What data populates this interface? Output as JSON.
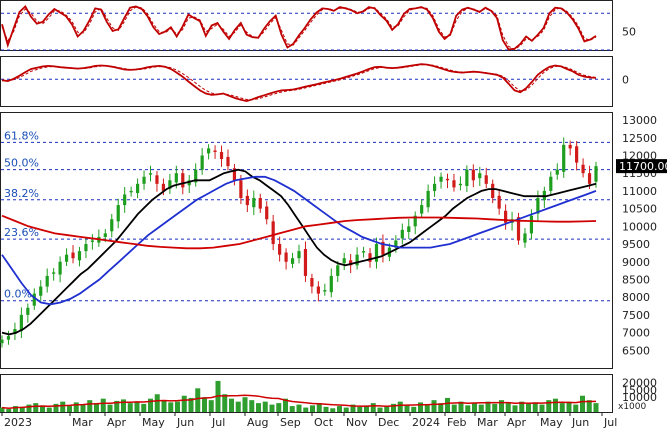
{
  "chart_data": [
    {
      "type": "line",
      "panel": "stochastic-oscillator",
      "ylim": [
        20,
        100
      ],
      "y_ticks": [
        "50"
      ],
      "levels": [
        80,
        20
      ],
      "series": [
        {
          "color": "#c00000",
          "values": [
            62,
            28,
            55,
            82,
            91,
            74,
            63,
            66,
            78,
            87,
            81,
            75,
            62,
            42,
            51,
            68,
            88,
            86,
            66,
            51,
            54,
            72,
            89,
            91,
            87,
            75,
            57,
            46,
            50,
            57,
            42,
            58,
            78,
            72,
            67,
            43,
            60,
            64,
            50,
            38,
            53,
            64,
            45,
            41,
            40,
            55,
            67,
            76,
            45,
            24,
            30,
            44,
            56,
            70,
            81,
            88,
            87,
            84,
            90,
            88,
            85,
            80,
            83,
            90,
            88,
            77,
            68,
            53,
            62,
            79,
            87,
            88,
            90,
            86,
            72,
            50,
            38,
            46,
            76,
            86,
            89,
            86,
            82,
            89,
            84,
            72,
            36,
            21,
            22,
            30,
            42,
            35,
            45,
            56,
            80,
            89,
            88,
            81,
            70,
            55,
            34,
            37,
            43
          ]
        },
        {
          "color": "#c00000",
          "dashed": true,
          "values": [
            58,
            35,
            50,
            76,
            87,
            80,
            67,
            63,
            72,
            84,
            84,
            77,
            67,
            49,
            48,
            62,
            82,
            88,
            72,
            56,
            52,
            66,
            84,
            90,
            89,
            79,
            62,
            50,
            48,
            55,
            46,
            53,
            72,
            74,
            69,
            50,
            55,
            62,
            54,
            42,
            49,
            61,
            49,
            42,
            40,
            50,
            63,
            73,
            52,
            30,
            28,
            40,
            52,
            65,
            77,
            86,
            88,
            85,
            88,
            89,
            86,
            82,
            82,
            88,
            89,
            80,
            71,
            57,
            59,
            74,
            85,
            88,
            89,
            88,
            76,
            55,
            41,
            44,
            68,
            83,
            88,
            87,
            83,
            87,
            85,
            76,
            44,
            26,
            21,
            27,
            38,
            37,
            42,
            52,
            74,
            86,
            89,
            83,
            73,
            59,
            39,
            36,
            41
          ]
        }
      ]
    },
    {
      "type": "line",
      "panel": "macd",
      "ylim": [
        -600,
        500
      ],
      "y_ticks": [
        "0"
      ],
      "zero_line": 0,
      "series": [
        {
          "color": "#c00000",
          "values": [
            -20,
            -40,
            10,
            80,
            160,
            230,
            260,
            290,
            300,
            290,
            270,
            260,
            250,
            240,
            250,
            270,
            300,
            310,
            300,
            280,
            250,
            220,
            210,
            220,
            240,
            270,
            290,
            300,
            280,
            230,
            150,
            60,
            -50,
            -150,
            -250,
            -320,
            -350,
            -340,
            -320,
            -370,
            -420,
            -460,
            -490,
            -450,
            -400,
            -360,
            -320,
            -280,
            -250,
            -240,
            -230,
            -200,
            -170,
            -140,
            -110,
            -80,
            -50,
            -20,
            10,
            50,
            90,
            130,
            180,
            230,
            270,
            280,
            260,
            250,
            260,
            280,
            300,
            320,
            340,
            330,
            300,
            260,
            220,
            180,
            160,
            150,
            160,
            170,
            160,
            140,
            120,
            100,
            40,
            -100,
            -250,
            -290,
            -200,
            -60,
            100,
            200,
            280,
            310,
            290,
            230,
            180,
            100,
            60,
            40,
            30
          ]
        },
        {
          "color": "#c00000",
          "dashed": true,
          "values": [
            -30,
            -35,
            -10,
            40,
            110,
            180,
            220,
            260,
            280,
            285,
            275,
            265,
            255,
            245,
            245,
            255,
            280,
            295,
            300,
            290,
            265,
            240,
            220,
            215,
            225,
            245,
            270,
            285,
            285,
            260,
            205,
            130,
            40,
            -60,
            -160,
            -250,
            -310,
            -335,
            -330,
            -345,
            -380,
            -420,
            -455,
            -460,
            -435,
            -400,
            -360,
            -320,
            -285,
            -260,
            -245,
            -225,
            -195,
            -165,
            -135,
            -105,
            -75,
            -45,
            -15,
            20,
            60,
            100,
            145,
            195,
            240,
            265,
            265,
            255,
            255,
            265,
            285,
            305,
            325,
            330,
            315,
            285,
            245,
            205,
            175,
            160,
            158,
            165,
            162,
            150,
            130,
            110,
            70,
            -30,
            -170,
            -260,
            -240,
            -130,
            20,
            150,
            240,
            290,
            295,
            260,
            210,
            140,
            90,
            60,
            40
          ]
        }
      ]
    },
    {
      "type": "candlestick",
      "panel": "price",
      "ylim": [
        6000,
        13200
      ],
      "y_ticks": [
        "13000",
        "12500",
        "12000",
        "11500",
        "11000",
        "10500",
        "10000",
        "9500",
        "9000",
        "8500",
        "8000",
        "7500",
        "7000",
        "6500"
      ],
      "last_price": "11700.00",
      "x_ticks": [
        "2023",
        "Mar",
        "Apr",
        "May",
        "Jun",
        "Jul",
        "Aug",
        "Sep",
        "Oct",
        "Nov",
        "Dec",
        "2024",
        "Feb",
        "Mar",
        "Apr",
        "May",
        "Jun",
        "Jul"
      ],
      "fibonacci": [
        {
          "label": "61.8%",
          "value": 12370
        },
        {
          "label": "50.0%",
          "value": 11600
        },
        {
          "label": "38.2%",
          "value": 10750
        },
        {
          "label": "23.6%",
          "value": 9640
        },
        {
          "label": "0.0%",
          "value": 7900
        }
      ],
      "closes": [
        6800,
        6900,
        7100,
        7500,
        7700,
        8100,
        8300,
        8600,
        8700,
        9000,
        9200,
        9100,
        9300,
        9500,
        9600,
        9700,
        9800,
        10200,
        10600,
        10900,
        11000,
        11200,
        11400,
        11500,
        11200,
        11000,
        11300,
        11500,
        11100,
        11300,
        11600,
        12000,
        12200,
        12100,
        11900,
        11700,
        11300,
        10800,
        10600,
        10800,
        10500,
        10200,
        9500,
        9200,
        9000,
        9100,
        9300,
        8600,
        8300,
        8100,
        8200,
        8600,
        8900,
        9100,
        8900,
        9200,
        9300,
        9000,
        9500,
        9200,
        9400,
        9600,
        9900,
        10000,
        10300,
        10600,
        11000,
        11200,
        11400,
        11300,
        11100,
        11200,
        11600,
        11300,
        11500,
        11200,
        10800,
        10500,
        10100,
        10200,
        9600,
        9800,
        10300,
        10800,
        11000,
        11400,
        11600,
        12300,
        12200,
        11800,
        11500,
        11200,
        11700
      ],
      "series": [
        {
          "color": "#000000",
          "values": [
            7000,
            6950,
            7000,
            7100,
            7250,
            7450,
            7650,
            7850,
            8050,
            8250,
            8450,
            8650,
            8800,
            9000,
            9200,
            9400,
            9600,
            9850,
            10100,
            10350,
            10550,
            10750,
            10900,
            11050,
            11150,
            11200,
            11250,
            11300,
            11300,
            11300,
            11400,
            11500,
            11550,
            11600,
            11550,
            11400,
            11300,
            11150,
            11000,
            10850,
            10600,
            10300,
            10000,
            9700,
            9400,
            9200,
            9050,
            8950,
            8900,
            8950,
            9000,
            9050,
            9100,
            9150,
            9250,
            9350,
            9450,
            9550,
            9700,
            9850,
            10000,
            10150,
            10300,
            10500,
            10650,
            10800,
            10900,
            11000,
            11050,
            11050,
            11000,
            10950,
            10900,
            10850,
            10850,
            10850,
            10850,
            10900,
            10950,
            11000,
            11050,
            11100,
            11150,
            11200
          ]
        },
        {
          "color": "#1f2fd0",
          "values": [
            9200,
            8800,
            8400,
            8050,
            7850,
            7800,
            7850,
            7950,
            8100,
            8300,
            8500,
            8750,
            9000,
            9250,
            9500,
            9750,
            9950,
            10150,
            10350,
            10550,
            10750,
            10900,
            11050,
            11200,
            11300,
            11350,
            11400,
            11400,
            11300,
            11150,
            11000,
            10800,
            10600,
            10400,
            10200,
            10000,
            9850,
            9700,
            9600,
            9500,
            9450,
            9400,
            9400,
            9400,
            9400,
            9450,
            9500,
            9600,
            9700,
            9800,
            9900,
            10000,
            10100,
            10200,
            10300,
            10400,
            10500,
            10600,
            10700,
            10800,
            10900,
            11000
          ]
        },
        {
          "color": "#d00000",
          "values": [
            10300,
            10150,
            10000,
            9900,
            9800,
            9750,
            9700,
            9650,
            9600,
            9550,
            9500,
            9450,
            9420,
            9400,
            9380,
            9380,
            9400,
            9450,
            9500,
            9600,
            9700,
            9800,
            9900,
            10000,
            10050,
            10100,
            10150,
            10180,
            10200,
            10220,
            10240,
            10250,
            10250,
            10250,
            10240,
            10230,
            10220,
            10200,
            10180,
            10160,
            10150,
            10140,
            10130,
            10130,
            10140,
            10150
          ]
        }
      ]
    },
    {
      "type": "bar",
      "panel": "volume",
      "ylim": [
        0,
        25000
      ],
      "y_ticks": [
        "20000",
        "15000",
        "10000"
      ],
      "unit": "x1000",
      "values": [
        3000,
        2000,
        4000,
        3500,
        5000,
        6000,
        4500,
        3000,
        5500,
        7000,
        4000,
        6500,
        5000,
        8000,
        6000,
        9000,
        5000,
        7500,
        8500,
        6000,
        7000,
        5500,
        9000,
        12000,
        8000,
        6500,
        7000,
        11000,
        9500,
        16000,
        10000,
        8000,
        21000,
        12000,
        9000,
        7000,
        10000,
        8000,
        6000,
        7000,
        5000,
        6000,
        9000,
        4000,
        5000,
        3000,
        4500,
        6000,
        3500,
        2500,
        4000,
        3000,
        5000,
        3500,
        4500,
        6000,
        3000,
        4000,
        5500,
        7000,
        5000,
        3500,
        6500,
        4500,
        8000,
        6000,
        9500,
        5000,
        7000,
        4500,
        6000,
        5000,
        7000,
        5500,
        8000,
        6000,
        4500,
        7000,
        5500,
        6500,
        5000,
        8000,
        9000,
        6000,
        7000,
        5000,
        11000,
        8000,
        6000
      ]
    }
  ]
}
